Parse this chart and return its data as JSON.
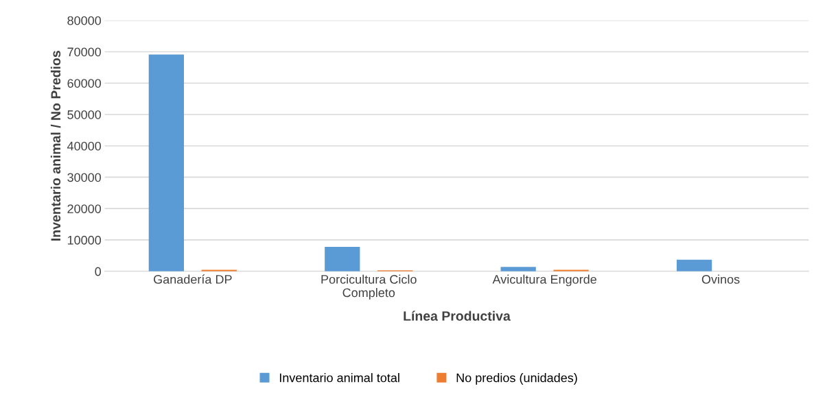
{
  "chart_data": {
    "type": "bar",
    "xlabel": "Línea Productiva",
    "ylabel": "Inventario animal / No Predios",
    "categories": [
      "Ganadería DP",
      "Porcicultura Ciclo\nCompleto",
      "Avicultura Engorde",
      "Ovinos"
    ],
    "series": [
      {
        "name": "Inventario animal total",
        "color": "#5b9bd5",
        "values": [
          69100,
          7800,
          1400,
          3700
        ]
      },
      {
        "name": "No predios (unidades)",
        "color": "#ed7d31",
        "values": [
          500,
          300,
          500,
          null
        ]
      }
    ],
    "ylim": [
      0,
      80000
    ],
    "yticks": [
      0,
      10000,
      20000,
      30000,
      40000,
      50000,
      60000,
      70000,
      80000
    ],
    "grid": "y",
    "legend": "bottom"
  }
}
